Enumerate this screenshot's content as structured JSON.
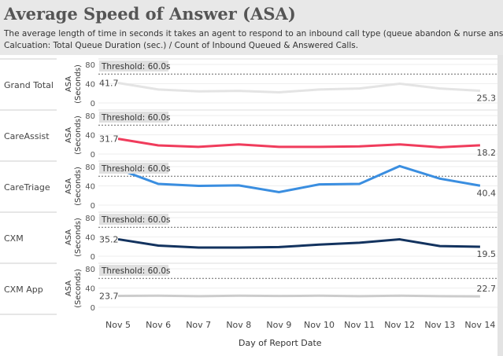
{
  "header": {
    "title": "Average Speed of Answer (ASA)",
    "subtitle1": "The average length of time in seconds it takes an agent to respond to an inbound call type (queue abandon & nurse answer).",
    "subtitle2": "Calcuation: Total Queue Duration (sec.) / Count of Inbound Queued & Answered Calls."
  },
  "chart_data": {
    "type": "line",
    "x": [
      "Nov 5",
      "Nov 6",
      "Nov 7",
      "Nov 8",
      "Nov 9",
      "Nov 10",
      "Nov 11",
      "Nov 12",
      "Nov 13",
      "Nov 14"
    ],
    "xlabel": "Day of Report Date",
    "ylabel": "ASA (Seconds)",
    "ylim": [
      0,
      80
    ],
    "yticks": [
      "0",
      "40",
      "80"
    ],
    "threshold_label": "Threshold: 60.0s",
    "threshold": 60,
    "series": [
      {
        "name": "Grand Total",
        "color": "#e4e4e4",
        "values": [
          41.7,
          28,
          24,
          25,
          22,
          28,
          30,
          40,
          30,
          25.3
        ],
        "first_label": "41.7",
        "last_label": "25.3"
      },
      {
        "name": "CareAssist",
        "color": "#f03c5c",
        "values": [
          31.7,
          18,
          15,
          20,
          15,
          15,
          16,
          20,
          14,
          18.2
        ],
        "first_label": "31.7",
        "last_label": "18.2"
      },
      {
        "name": "CareTriage",
        "color": "#3a8ee0",
        "values": [
          75,
          44,
          40,
          41,
          27,
          43,
          44,
          81,
          55,
          40.4
        ],
        "first_label": "",
        "last_label": "40.4"
      },
      {
        "name": "CXM",
        "color": "#13335f",
        "values": [
          35.2,
          22,
          18,
          18,
          19,
          24,
          28,
          35,
          21,
          19.5
        ],
        "first_label": "35.2",
        "last_label": "19.5"
      },
      {
        "name": "CXM App",
        "color": "#cccccc",
        "values": [
          23.7,
          24,
          23,
          24,
          23.5,
          24,
          23,
          24,
          23,
          22.7
        ],
        "first_label": "23.7",
        "last_label": "22.7"
      }
    ]
  }
}
